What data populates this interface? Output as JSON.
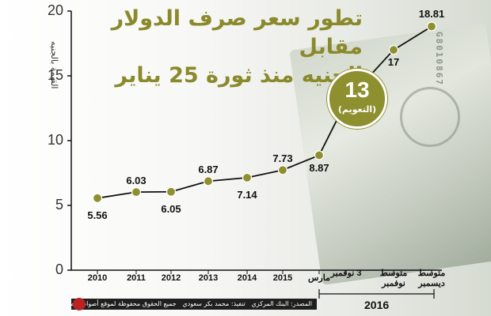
{
  "title_line1": "تطور سعر صرف الدولار مقابل",
  "title_line2": "الجنيه منذ ثورة 25 يناير",
  "colors": {
    "line": "#111111",
    "point": "#8e8f2f",
    "accent": "#8e8f2f"
  },
  "badge": {
    "value": "13",
    "label": "(التعويم)"
  },
  "year_group": "2016",
  "footer": {
    "source": "المصدر: البنك المركزي",
    "design": "تنفيذ: محمد بكر سعودي",
    "rights": "جميع الحقوق محفوظة لموقع أصوات مصرية"
  },
  "chart_data": {
    "type": "line",
    "title": "تطور سعر صرف الدولار مقابل الجنيه منذ ثورة 25 يناير",
    "ylabel": "القيمة بالجنيه",
    "xlabel": "",
    "ylim": [
      0,
      20
    ],
    "yticks": [
      "0",
      "5",
      "10",
      "15",
      "20"
    ],
    "categories": [
      "2010",
      "2011",
      "2012",
      "2013",
      "2014",
      "2015",
      "مارس",
      "3 نوفمبر",
      "متوسط نوفمبر",
      "متوسط ديسمبر"
    ],
    "values": [
      5.56,
      6.03,
      6.05,
      6.87,
      7.14,
      7.73,
      8.87,
      13,
      17,
      18.81
    ],
    "labels": [
      "5.56",
      "6.03",
      "6.05",
      "6.87",
      "7.14",
      "7.73",
      "8.87",
      "",
      "17",
      "18.81"
    ],
    "grid": false
  }
}
